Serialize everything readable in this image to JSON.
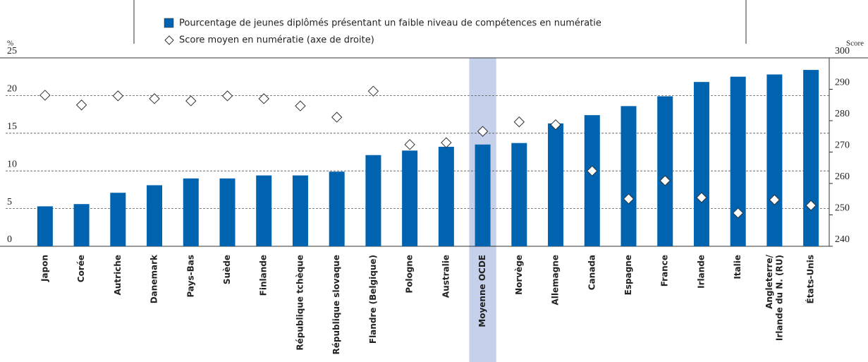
{
  "chart_data": {
    "type": "bar",
    "ylabel": "%",
    "y2label": "Score",
    "categories": [
      "Japon",
      "Corée",
      "Autriche",
      "Danemark",
      "Pays-Bas",
      "Suède",
      "Finlande",
      "République tchèque",
      "République slovaque",
      "Flandre (Belgique)",
      "Pologne",
      "Australie",
      "Moyenne OCDE",
      "Norvège",
      "Allemagne",
      "Canada",
      "Espagne",
      "France",
      "Irlande",
      "Italie",
      "Angleterre/\nIrlande du N. (RU)",
      "États-Unis"
    ],
    "series": [
      {
        "name": "Pourcentage de jeunes diplômés présentant un faible niveau de compétences en numératie",
        "type": "bar",
        "color": "#0063b0",
        "values": [
          5.3,
          5.6,
          7.1,
          8.1,
          9.0,
          9.0,
          9.4,
          9.4,
          9.9,
          12.1,
          12.7,
          13.2,
          13.5,
          13.7,
          16.3,
          17.4,
          18.6,
          19.9,
          21.8,
          22.5,
          22.8,
          23.4
        ]
      },
      {
        "name": "Score moyen en numératie (axe de droite)",
        "type": "scatter",
        "axis": "y2",
        "color": "#333333",
        "values": [
          288.1,
          285,
          287.9,
          287,
          286.3,
          287.9,
          287,
          284.7,
          281.1,
          289.4,
          272.4,
          273,
          276.6,
          279.6,
          278.7,
          264,
          255.1,
          260.9,
          255.5,
          250.6,
          254.8,
          253
        ]
      }
    ],
    "ylim": [
      0,
      25
    ],
    "yticks": [
      0,
      5,
      10,
      15,
      20,
      25
    ],
    "y2lim": [
      240,
      300
    ],
    "y2ticks": [
      240,
      250,
      260,
      270,
      280,
      290,
      300
    ],
    "grid": true,
    "highlight": 12,
    "highlight_color": "#c5d0ea"
  }
}
